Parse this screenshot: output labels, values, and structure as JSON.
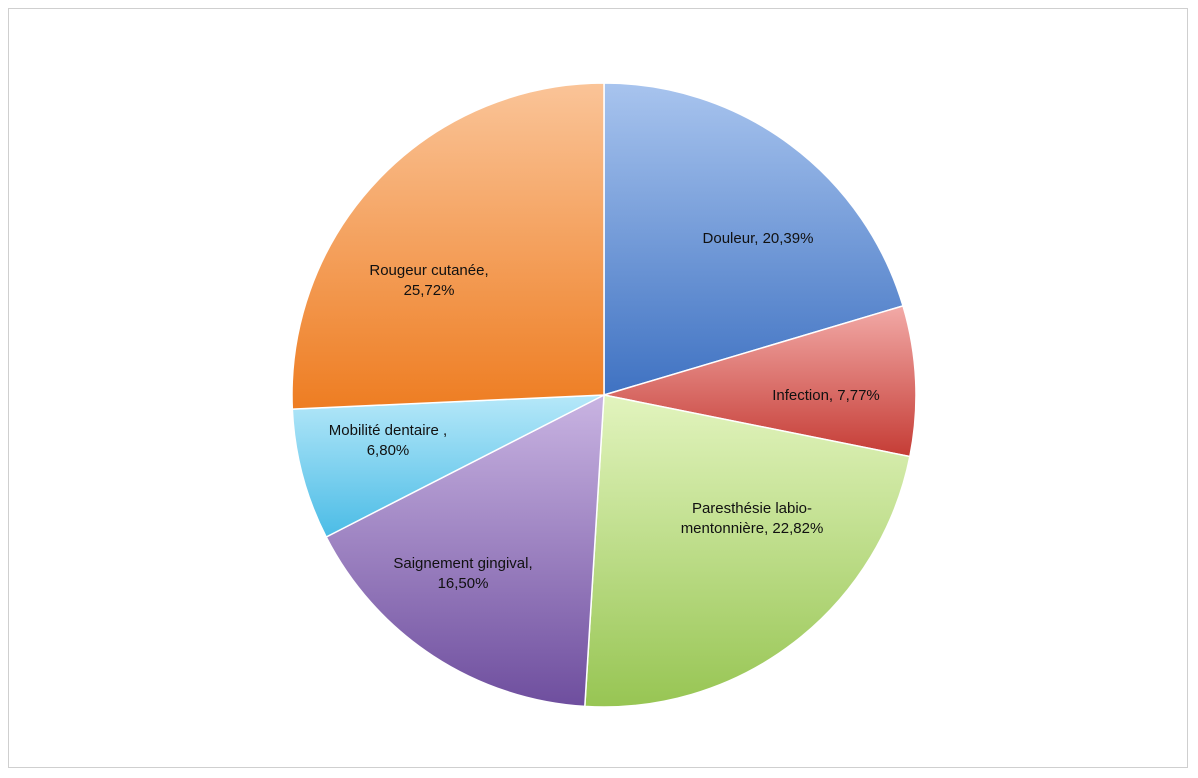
{
  "chart_data": {
    "type": "pie",
    "title": "",
    "start_angle_deg": 0,
    "direction": "clockwise",
    "slices": [
      {
        "label_lines": [
          "Douleur, 20,39%"
        ],
        "value": 20.39,
        "color_light": "#a8c4ee",
        "color_dark": "#3f72c2"
      },
      {
        "label_lines": [
          "Infection, 7,77%"
        ],
        "value": 7.77,
        "color_light": "#f2aaa7",
        "color_dark": "#c53c35"
      },
      {
        "label_lines": [
          "Paresthésie labio-",
          "mentonnière, 22,82%"
        ],
        "value": 22.82,
        "color_light": "#e2f4be",
        "color_dark": "#97c553"
      },
      {
        "label_lines": [
          "Saignement gingival,",
          "16,50%"
        ],
        "value": 16.5,
        "color_light": "#c9b4e2",
        "color_dark": "#6e4e9e"
      },
      {
        "label_lines": [
          "Mobilité dentaire ,",
          "6,80%"
        ],
        "value": 6.8,
        "color_light": "#b6e8f9",
        "color_dark": "#4bbce6"
      },
      {
        "label_lines": [
          "Rougeur cutanée,",
          "25,72%"
        ],
        "value": 25.72,
        "color_light": "#fac498",
        "color_dark": "#ee7d22"
      }
    ]
  }
}
